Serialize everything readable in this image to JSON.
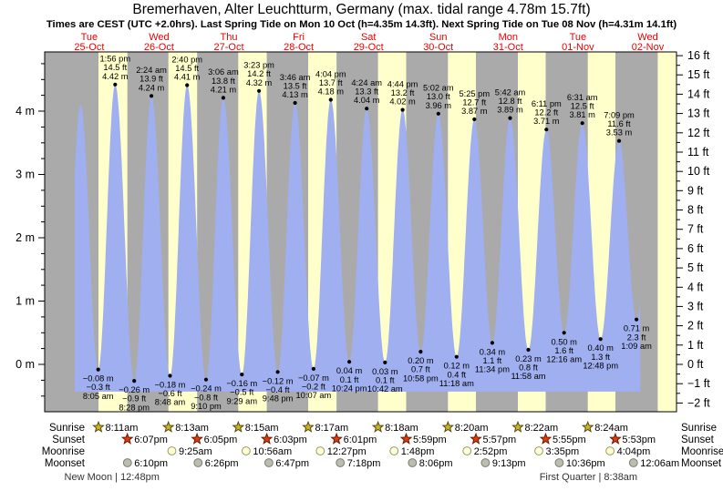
{
  "header": {
    "title": "Bremerhaven, Alter Leuchtturm, Germany (max. tidal range 4.78m 15.7ft)",
    "subtitle": "Times are CEST (UTC +2.0hrs). Last Spring Tide on Mon 10 Oct (h=4.35m 14.3ft). Next Spring Tide on Tue 08 Nov (h=4.31m 14.1ft)"
  },
  "days": [
    {
      "name": "Tue",
      "date": "25-Oct"
    },
    {
      "name": "Wed",
      "date": "26-Oct"
    },
    {
      "name": "Thu",
      "date": "27-Oct"
    },
    {
      "name": "Fri",
      "date": "28-Oct"
    },
    {
      "name": "Sat",
      "date": "29-Oct"
    },
    {
      "name": "Sun",
      "date": "30-Oct"
    },
    {
      "name": "Mon",
      "date": "31-Oct"
    },
    {
      "name": "Tue",
      "date": "01-Nov"
    },
    {
      "name": "Wed",
      "date": "02-Nov"
    }
  ],
  "chart_data": {
    "type": "area",
    "y_axis_left": {
      "unit": "m",
      "tick_labels": [
        "0 m",
        "1 m",
        "2 m",
        "3 m",
        "4 m"
      ],
      "range_m": [
        -0.75,
        4.95
      ]
    },
    "y_axis_right": {
      "unit": "ft",
      "tick_range": [
        -2,
        16
      ],
      "tick_step": 1
    },
    "base_level_m": -0.43,
    "tides": [
      {
        "day": "24-Oct",
        "time": "8:00 pm",
        "m": -0.15,
        "type": "L",
        "hidden": true
      },
      {
        "day": "25-Oct",
        "time": "2:05 am",
        "m": 4.1,
        "type": "H",
        "hidden": true
      },
      {
        "day": "25-Oct",
        "time": "8:05 am",
        "m": -0.08,
        "ft": -0.3,
        "type": "L"
      },
      {
        "day": "25-Oct",
        "time": "1:56 pm",
        "m": 4.42,
        "ft": 14.5,
        "type": "H"
      },
      {
        "day": "25-Oct",
        "time": "8:28 pm",
        "m": -0.26,
        "ft": -0.9,
        "type": "L"
      },
      {
        "day": "26-Oct",
        "time": "2:24 am",
        "m": 4.24,
        "ft": 13.9,
        "type": "H"
      },
      {
        "day": "26-Oct",
        "time": "8:48 am",
        "m": -0.18,
        "ft": -0.6,
        "type": "L"
      },
      {
        "day": "26-Oct",
        "time": "2:40 pm",
        "m": 4.41,
        "ft": 14.5,
        "type": "H"
      },
      {
        "day": "26-Oct",
        "time": "9:10 pm",
        "m": -0.24,
        "ft": -0.8,
        "type": "L"
      },
      {
        "day": "27-Oct",
        "time": "3:06 am",
        "m": 4.21,
        "ft": 13.8,
        "type": "H"
      },
      {
        "day": "27-Oct",
        "time": "9:29 am",
        "m": -0.16,
        "ft": -0.5,
        "type": "L"
      },
      {
        "day": "27-Oct",
        "time": "3:23 pm",
        "m": 4.32,
        "ft": 14.2,
        "type": "H"
      },
      {
        "day": "27-Oct",
        "time": "9:48 pm",
        "m": -0.12,
        "ft": -0.4,
        "type": "L"
      },
      {
        "day": "28-Oct",
        "time": "3:46 am",
        "m": 4.13,
        "ft": 13.5,
        "type": "H"
      },
      {
        "day": "28-Oct",
        "time": "10:07 am",
        "m": -0.07,
        "ft": -0.2,
        "type": "L"
      },
      {
        "day": "28-Oct",
        "time": "4:04 pm",
        "m": 4.18,
        "ft": 13.7,
        "type": "H"
      },
      {
        "day": "28-Oct",
        "time": "10:24 pm",
        "m": 0.04,
        "ft": 0.1,
        "type": "L"
      },
      {
        "day": "29-Oct",
        "time": "4:24 am",
        "m": 4.04,
        "ft": 13.3,
        "type": "H"
      },
      {
        "day": "29-Oct",
        "time": "10:42 am",
        "m": 0.03,
        "ft": 0.1,
        "type": "L"
      },
      {
        "day": "29-Oct",
        "time": "4:44 pm",
        "m": 4.02,
        "ft": 13.2,
        "type": "H"
      },
      {
        "day": "29-Oct",
        "time": "10:58 pm",
        "m": 0.2,
        "ft": 0.7,
        "type": "L"
      },
      {
        "day": "30-Oct",
        "time": "5:02 am",
        "m": 3.96,
        "ft": 13.0,
        "type": "H"
      },
      {
        "day": "30-Oct",
        "time": "11:18 am",
        "m": 0.12,
        "ft": 0.4,
        "type": "L"
      },
      {
        "day": "30-Oct",
        "time": "5:25 pm",
        "m": 3.87,
        "ft": 12.7,
        "type": "H"
      },
      {
        "day": "30-Oct",
        "time": "11:34 pm",
        "m": 0.34,
        "ft": 1.1,
        "type": "L"
      },
      {
        "day": "31-Oct",
        "time": "5:42 am",
        "m": 3.89,
        "ft": 12.8,
        "type": "H"
      },
      {
        "day": "31-Oct",
        "time": "11:58 am",
        "m": 0.23,
        "ft": 0.8,
        "type": "L"
      },
      {
        "day": "31-Oct",
        "time": "6:11 pm",
        "m": 3.71,
        "ft": 12.2,
        "type": "H"
      },
      {
        "day": "01-Nov",
        "time": "12:16 am",
        "m": 0.5,
        "ft": 1.6,
        "type": "L"
      },
      {
        "day": "01-Nov",
        "time": "6:31 am",
        "m": 3.81,
        "ft": 12.5,
        "type": "H"
      },
      {
        "day": "01-Nov",
        "time": "12:48 pm",
        "m": 0.4,
        "ft": 1.3,
        "type": "L"
      },
      {
        "day": "01-Nov",
        "time": "7:09 pm",
        "m": 3.53,
        "ft": 11.6,
        "type": "H"
      },
      {
        "day": "02-Nov",
        "time": "1:09 am",
        "m": 0.71,
        "ft": 2.3,
        "type": "L"
      },
      {
        "day": "02-Nov",
        "time": "7:30 am",
        "m": 3.6,
        "type": "H",
        "hidden": true
      }
    ],
    "colors": {
      "night_band": "#aaaaaa",
      "day_band": "#ffffcc",
      "tide_fill": "#9fafef",
      "day_label": "#ee0000",
      "sunrise_star": "#c9b52b",
      "sunrise_star_border": "#5a4a08",
      "sunset_star": "#dd3b10",
      "sunset_star_border": "#6e1a00",
      "moonrise_circle": "#ffffd6",
      "moonrise_circle_border": "#9a9a66",
      "moonset_circle": "#bcbcb0",
      "moonset_circle_border": "#7d7d74"
    }
  },
  "astro": {
    "row_labels": {
      "sunrise": "Sunrise",
      "sunset": "Sunset",
      "moonrise": "Moonrise",
      "moonset": "Moonset"
    },
    "sunrise": [
      {
        "day": "25-Oct",
        "time": "8:11am"
      },
      {
        "day": "26-Oct",
        "time": "8:13am"
      },
      {
        "day": "27-Oct",
        "time": "8:15am"
      },
      {
        "day": "28-Oct",
        "time": "8:17am"
      },
      {
        "day": "29-Oct",
        "time": "8:18am"
      },
      {
        "day": "30-Oct",
        "time": "8:20am"
      },
      {
        "day": "31-Oct",
        "time": "8:22am"
      },
      {
        "day": "01-Nov",
        "time": "8:24am"
      }
    ],
    "sunset": [
      {
        "day": "25-Oct",
        "time": "6:07pm"
      },
      {
        "day": "26-Oct",
        "time": "6:05pm"
      },
      {
        "day": "27-Oct",
        "time": "6:03pm"
      },
      {
        "day": "28-Oct",
        "time": "6:01pm"
      },
      {
        "day": "29-Oct",
        "time": "5:59pm"
      },
      {
        "day": "30-Oct",
        "time": "5:57pm"
      },
      {
        "day": "31-Oct",
        "time": "5:55pm"
      },
      {
        "day": "01-Nov",
        "time": "5:53pm"
      }
    ],
    "moonrise": [
      {
        "day": "26-Oct",
        "time": "9:25am"
      },
      {
        "day": "27-Oct",
        "time": "10:56am"
      },
      {
        "day": "28-Oct",
        "time": "12:27pm"
      },
      {
        "day": "29-Oct",
        "time": "1:48pm"
      },
      {
        "day": "30-Oct",
        "time": "2:52pm"
      },
      {
        "day": "31-Oct",
        "time": "3:35pm"
      },
      {
        "day": "01-Nov",
        "time": "4:04pm"
      }
    ],
    "moonset": [
      {
        "day": "25-Oct",
        "time": "6:10pm"
      },
      {
        "day": "26-Oct",
        "time": "6:26pm"
      },
      {
        "day": "27-Oct",
        "time": "6:47pm"
      },
      {
        "day": "28-Oct",
        "time": "7:18pm"
      },
      {
        "day": "29-Oct",
        "time": "8:06pm"
      },
      {
        "day": "30-Oct",
        "time": "9:13pm"
      },
      {
        "day": "31-Oct",
        "time": "10:36pm"
      },
      {
        "day": "02-Nov",
        "time": "12:06am"
      }
    ],
    "phases": [
      {
        "day": "25-Oct",
        "label": "New Moon",
        "time": "12:48pm"
      },
      {
        "day": "01-Nov",
        "label": "First Quarter",
        "time": "8:38am"
      }
    ]
  }
}
